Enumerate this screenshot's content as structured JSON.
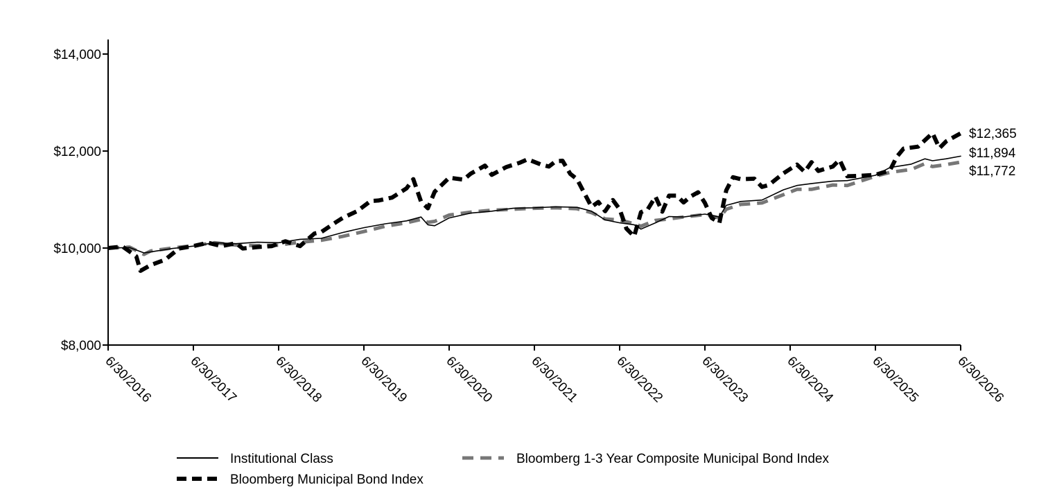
{
  "chart_data": {
    "type": "line",
    "x_tick_labels": [
      "6/30/2016",
      "6/30/2017",
      "6/30/2018",
      "6/30/2019",
      "6/30/2020",
      "6/30/2021",
      "6/30/2022",
      "6/30/2023",
      "6/30/2024",
      "6/30/2025",
      "6/30/2026"
    ],
    "y_tick_labels": [
      "$8,000",
      "$10,000",
      "$12,000",
      "$14,000"
    ],
    "y_ticks": [
      8000,
      10000,
      12000,
      14000
    ],
    "ylim": [
      8000,
      14300
    ],
    "xlim": [
      2016.5,
      2026.5
    ],
    "grid": false,
    "legend_position": "bottom",
    "end_labels": [
      "$12,365",
      "$11,894",
      "$11,772"
    ],
    "series": [
      {
        "name": "Institutional Class",
        "color": "#000000",
        "style": "solid",
        "end_value": 11894,
        "points": [
          [
            2016.5,
            10000
          ],
          [
            2016.75,
            10010
          ],
          [
            2016.92,
            9900
          ],
          [
            2017.0,
            9920
          ],
          [
            2017.25,
            9990
          ],
          [
            2017.5,
            10040
          ],
          [
            2017.75,
            10110
          ],
          [
            2018.0,
            10090
          ],
          [
            2018.25,
            10120
          ],
          [
            2018.5,
            10110
          ],
          [
            2018.75,
            10180
          ],
          [
            2019.0,
            10200
          ],
          [
            2019.25,
            10320
          ],
          [
            2019.5,
            10420
          ],
          [
            2019.75,
            10500
          ],
          [
            2020.0,
            10560
          ],
          [
            2020.17,
            10640
          ],
          [
            2020.25,
            10480
          ],
          [
            2020.33,
            10460
          ],
          [
            2020.5,
            10620
          ],
          [
            2020.75,
            10720
          ],
          [
            2021.0,
            10760
          ],
          [
            2021.25,
            10820
          ],
          [
            2021.5,
            10830
          ],
          [
            2021.75,
            10850
          ],
          [
            2022.0,
            10840
          ],
          [
            2022.17,
            10760
          ],
          [
            2022.33,
            10580
          ],
          [
            2022.5,
            10520
          ],
          [
            2022.67,
            10480
          ],
          [
            2022.75,
            10390
          ],
          [
            2022.92,
            10520
          ],
          [
            2023.08,
            10650
          ],
          [
            2023.25,
            10640
          ],
          [
            2023.5,
            10700
          ],
          [
            2023.67,
            10640
          ],
          [
            2023.75,
            10880
          ],
          [
            2023.92,
            10960
          ],
          [
            2024.17,
            10990
          ],
          [
            2024.42,
            11200
          ],
          [
            2024.58,
            11290
          ],
          [
            2024.75,
            11330
          ],
          [
            2025.0,
            11380
          ],
          [
            2025.17,
            11390
          ],
          [
            2025.5,
            11500
          ],
          [
            2025.67,
            11660
          ],
          [
            2025.92,
            11730
          ],
          [
            2026.08,
            11840
          ],
          [
            2026.17,
            11800
          ],
          [
            2026.33,
            11840
          ],
          [
            2026.5,
            11894
          ]
        ]
      },
      {
        "name": "Bloomberg 1-3 Year Composite Municipal Bond Index",
        "color": "#777777",
        "style": "dashed-medium",
        "end_value": 11772,
        "points": [
          [
            2016.5,
            10000
          ],
          [
            2016.75,
            10020
          ],
          [
            2016.92,
            9870
          ],
          [
            2017.0,
            9940
          ],
          [
            2017.25,
            10000
          ],
          [
            2017.5,
            10050
          ],
          [
            2017.75,
            10110
          ],
          [
            2018.0,
            10060
          ],
          [
            2018.25,
            10050
          ],
          [
            2018.5,
            10060
          ],
          [
            2018.75,
            10120
          ],
          [
            2019.0,
            10160
          ],
          [
            2019.25,
            10240
          ],
          [
            2019.5,
            10340
          ],
          [
            2019.75,
            10450
          ],
          [
            2020.0,
            10520
          ],
          [
            2020.17,
            10590
          ],
          [
            2020.25,
            10530
          ],
          [
            2020.33,
            10550
          ],
          [
            2020.5,
            10680
          ],
          [
            2020.75,
            10740
          ],
          [
            2021.0,
            10780
          ],
          [
            2021.25,
            10800
          ],
          [
            2021.5,
            10820
          ],
          [
            2021.75,
            10830
          ],
          [
            2022.0,
            10810
          ],
          [
            2022.17,
            10730
          ],
          [
            2022.33,
            10600
          ],
          [
            2022.5,
            10580
          ],
          [
            2022.67,
            10500
          ],
          [
            2022.75,
            10450
          ],
          [
            2022.92,
            10570
          ],
          [
            2023.08,
            10600
          ],
          [
            2023.25,
            10640
          ],
          [
            2023.5,
            10690
          ],
          [
            2023.67,
            10620
          ],
          [
            2023.75,
            10800
          ],
          [
            2023.92,
            10900
          ],
          [
            2024.17,
            10930
          ],
          [
            2024.42,
            11100
          ],
          [
            2024.58,
            11210
          ],
          [
            2024.75,
            11210
          ],
          [
            2025.0,
            11300
          ],
          [
            2025.17,
            11290
          ],
          [
            2025.5,
            11480
          ],
          [
            2025.67,
            11560
          ],
          [
            2025.92,
            11620
          ],
          [
            2026.08,
            11740
          ],
          [
            2026.17,
            11680
          ],
          [
            2026.33,
            11720
          ],
          [
            2026.5,
            11772
          ]
        ]
      },
      {
        "name": "Bloomberg Municipal Bond Index",
        "color": "#000000",
        "style": "dashed-bold",
        "end_value": 12365,
        "points": [
          [
            2016.5,
            10000
          ],
          [
            2016.67,
            10030
          ],
          [
            2016.83,
            9830
          ],
          [
            2016.88,
            9530
          ],
          [
            2017.0,
            9650
          ],
          [
            2017.17,
            9760
          ],
          [
            2017.33,
            9990
          ],
          [
            2017.5,
            10040
          ],
          [
            2017.67,
            10110
          ],
          [
            2017.83,
            10040
          ],
          [
            2018.0,
            10100
          ],
          [
            2018.08,
            9990
          ],
          [
            2018.25,
            10020
          ],
          [
            2018.42,
            10040
          ],
          [
            2018.58,
            10140
          ],
          [
            2018.75,
            10040
          ],
          [
            2018.92,
            10300
          ],
          [
            2019.0,
            10330
          ],
          [
            2019.17,
            10530
          ],
          [
            2019.25,
            10620
          ],
          [
            2019.42,
            10760
          ],
          [
            2019.58,
            10970
          ],
          [
            2019.67,
            10980
          ],
          [
            2019.83,
            11040
          ],
          [
            2020.0,
            11230
          ],
          [
            2020.08,
            11420
          ],
          [
            2020.17,
            10960
          ],
          [
            2020.25,
            10820
          ],
          [
            2020.33,
            11160
          ],
          [
            2020.5,
            11450
          ],
          [
            2020.67,
            11410
          ],
          [
            2020.75,
            11530
          ],
          [
            2020.92,
            11700
          ],
          [
            2021.0,
            11510
          ],
          [
            2021.17,
            11670
          ],
          [
            2021.33,
            11760
          ],
          [
            2021.42,
            11830
          ],
          [
            2021.58,
            11720
          ],
          [
            2021.67,
            11680
          ],
          [
            2021.75,
            11790
          ],
          [
            2021.83,
            11800
          ],
          [
            2021.92,
            11530
          ],
          [
            2022.0,
            11420
          ],
          [
            2022.17,
            10850
          ],
          [
            2022.25,
            10950
          ],
          [
            2022.33,
            10760
          ],
          [
            2022.42,
            10990
          ],
          [
            2022.5,
            10800
          ],
          [
            2022.58,
            10400
          ],
          [
            2022.67,
            10240
          ],
          [
            2022.75,
            10740
          ],
          [
            2022.83,
            10800
          ],
          [
            2022.92,
            11060
          ],
          [
            2023.0,
            10750
          ],
          [
            2023.08,
            11080
          ],
          [
            2023.17,
            11080
          ],
          [
            2023.25,
            10940
          ],
          [
            2023.33,
            11060
          ],
          [
            2023.42,
            11150
          ],
          [
            2023.5,
            10930
          ],
          [
            2023.58,
            10620
          ],
          [
            2023.67,
            10520
          ],
          [
            2023.75,
            11190
          ],
          [
            2023.83,
            11460
          ],
          [
            2023.92,
            11420
          ],
          [
            2024.08,
            11430
          ],
          [
            2024.17,
            11260
          ],
          [
            2024.25,
            11300
          ],
          [
            2024.42,
            11540
          ],
          [
            2024.58,
            11720
          ],
          [
            2024.67,
            11570
          ],
          [
            2024.75,
            11770
          ],
          [
            2024.83,
            11590
          ],
          [
            2025.0,
            11680
          ],
          [
            2025.08,
            11820
          ],
          [
            2025.17,
            11480
          ],
          [
            2025.33,
            11490
          ],
          [
            2025.5,
            11510
          ],
          [
            2025.67,
            11600
          ],
          [
            2025.75,
            11880
          ],
          [
            2025.83,
            12050
          ],
          [
            2026.0,
            12090
          ],
          [
            2026.17,
            12370
          ],
          [
            2026.25,
            12060
          ],
          [
            2026.33,
            12200
          ],
          [
            2026.5,
            12365
          ]
        ]
      }
    ]
  }
}
